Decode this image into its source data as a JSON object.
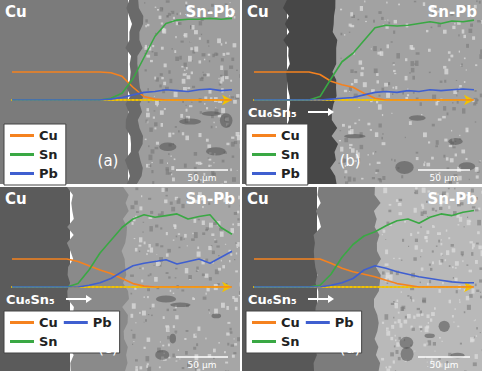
{
  "chart_data": [
    {
      "type": "line",
      "title": "(a)",
      "annotations": {
        "left": "Cu",
        "right": "Sn-Pb",
        "scale_bar": "50 μm"
      },
      "x": [
        0,
        5,
        10,
        15,
        20,
        25,
        30,
        35,
        40,
        45,
        50,
        55,
        60,
        65,
        70,
        75,
        80,
        85,
        90,
        95,
        100
      ],
      "series": [
        {
          "name": "Cu",
          "color": "#f5821f",
          "values": [
            33,
            33,
            33,
            33,
            33,
            33,
            33,
            33,
            33,
            32,
            28,
            15,
            4,
            1,
            0,
            0,
            0,
            0,
            0,
            0,
            0
          ]
        },
        {
          "name": "Sn",
          "color": "#3aa844",
          "values": [
            0,
            0,
            0,
            0,
            0,
            0,
            0,
            0,
            0,
            2,
            8,
            25,
            50,
            75,
            90,
            94,
            95,
            95,
            96,
            95,
            96
          ]
        },
        {
          "name": "Pb",
          "color": "#3f5fd0",
          "values": [
            0,
            0,
            0,
            0,
            0,
            0,
            0,
            0,
            0,
            1,
            3,
            6,
            9,
            10,
            12,
            11,
            10,
            12,
            13,
            11,
            12
          ]
        }
      ],
      "xlim": [
        0,
        100
      ],
      "ylim": [
        0,
        100
      ],
      "tick_labels": false,
      "grid": false,
      "legend": "lower left"
    },
    {
      "type": "line",
      "title": "(b)",
      "annotations": {
        "left": "Cu",
        "right": "Sn-Pb",
        "scale_bar": "50 μm",
        "phase": "Cu₆Sn₅"
      },
      "x": [
        0,
        5,
        10,
        15,
        20,
        25,
        30,
        35,
        40,
        45,
        50,
        55,
        60,
        65,
        70,
        75,
        80,
        85,
        90,
        95,
        100
      ],
      "series": [
        {
          "name": "Cu",
          "color": "#f5821f",
          "values": [
            33,
            33,
            33,
            33,
            33,
            33,
            30,
            22,
            18,
            15,
            8,
            2,
            0,
            0,
            0,
            0,
            0,
            0,
            0,
            0,
            0
          ]
        },
        {
          "name": "Sn",
          "color": "#3aa844",
          "values": [
            0,
            0,
            0,
            0,
            0,
            0,
            4,
            25,
            45,
            55,
            70,
            85,
            88,
            87,
            88,
            90,
            92,
            90,
            93,
            92,
            94
          ]
        },
        {
          "name": "Pb",
          "color": "#3f5fd0",
          "values": [
            0,
            0,
            0,
            0,
            0,
            0,
            0,
            1,
            2,
            3,
            6,
            9,
            10,
            9,
            11,
            10,
            12,
            11,
            12,
            13,
            12
          ]
        }
      ],
      "xlim": [
        0,
        100
      ],
      "ylim": [
        0,
        100
      ],
      "tick_labels": false,
      "grid": false,
      "legend": "lower left"
    },
    {
      "type": "line",
      "title": "(c)",
      "annotations": {
        "left": "Cu",
        "right": "Sn-Pb",
        "scale_bar": "50 μm",
        "phase": "Cu₆Sn₅"
      },
      "x": [
        0,
        5,
        10,
        15,
        20,
        25,
        30,
        35,
        40,
        45,
        50,
        55,
        60,
        65,
        70,
        75,
        80,
        85,
        90,
        95,
        100
      ],
      "series": [
        {
          "name": "Cu",
          "color": "#f5821f",
          "values": [
            33,
            33,
            33,
            33,
            33,
            33,
            30,
            25,
            20,
            16,
            10,
            4,
            1,
            0,
            0,
            0,
            0,
            0,
            0,
            0,
            0
          ]
        },
        {
          "name": "Sn",
          "color": "#3aa844",
          "values": [
            0,
            0,
            0,
            0,
            0,
            0,
            4,
            20,
            40,
            55,
            70,
            80,
            85,
            82,
            84,
            86,
            80,
            83,
            85,
            70,
            62
          ]
        },
        {
          "name": "Pb",
          "color": "#3f5fd0",
          "values": [
            0,
            0,
            0,
            0,
            0,
            0,
            0,
            2,
            5,
            10,
            18,
            25,
            28,
            30,
            32,
            27,
            30,
            33,
            28,
            35,
            42
          ]
        }
      ],
      "xlim": [
        0,
        100
      ],
      "ylim": [
        0,
        100
      ],
      "tick_labels": false,
      "grid": false,
      "legend": "lower left"
    },
    {
      "type": "line",
      "title": "(d)",
      "annotations": {
        "left": "Cu",
        "right": "Sn-Pb",
        "scale_bar": "50 μm",
        "phase": "Cu₆Sn₅"
      },
      "x": [
        0,
        5,
        10,
        15,
        20,
        25,
        30,
        35,
        40,
        45,
        50,
        55,
        60,
        65,
        70,
        75,
        80,
        85,
        90,
        95,
        100
      ],
      "series": [
        {
          "name": "Cu",
          "color": "#f5821f",
          "values": [
            33,
            33,
            33,
            33,
            33,
            33,
            33,
            28,
            22,
            18,
            15,
            12,
            8,
            4,
            2,
            0,
            0,
            0,
            0,
            0,
            0
          ]
        },
        {
          "name": "Sn",
          "color": "#3aa844",
          "values": [
            0,
            0,
            0,
            0,
            0,
            0,
            2,
            15,
            35,
            50,
            60,
            65,
            72,
            78,
            80,
            75,
            82,
            86,
            84,
            88,
            90
          ]
        },
        {
          "name": "Pb",
          "color": "#3f5fd0",
          "values": [
            0,
            0,
            0,
            0,
            0,
            0,
            0,
            2,
            5,
            10,
            20,
            25,
            22,
            18,
            15,
            12,
            10,
            8,
            6,
            5,
            5
          ]
        }
      ],
      "xlim": [
        0,
        100
      ],
      "ylim": [
        0,
        100
      ],
      "tick_labels": false,
      "grid": false,
      "legend": "lower left"
    }
  ]
}
